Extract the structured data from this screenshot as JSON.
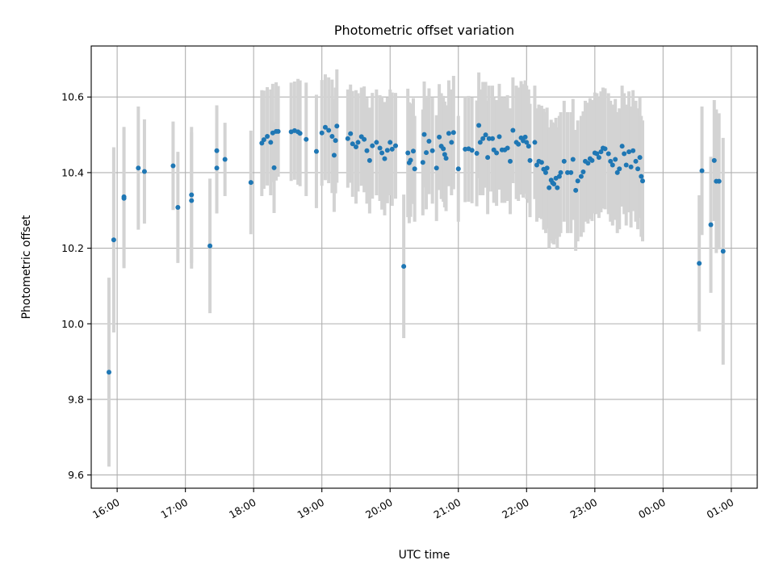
{
  "chart_data": {
    "type": "scatter",
    "title": "Photometric offset variation",
    "xlabel": "UTC time",
    "ylabel": "Photometric offset",
    "x_unit": "UTC time of day (hours, times after midnight given as 24+)",
    "xlim": [
      15.62,
      25.38
    ],
    "ylim": [
      9.565,
      10.735
    ],
    "x_ticks": [
      {
        "value": 16,
        "label": "16:00"
      },
      {
        "value": 17,
        "label": "17:00"
      },
      {
        "value": 18,
        "label": "18:00"
      },
      {
        "value": 19,
        "label": "19:00"
      },
      {
        "value": 20,
        "label": "20:00"
      },
      {
        "value": 21,
        "label": "21:00"
      },
      {
        "value": 22,
        "label": "22:00"
      },
      {
        "value": 23,
        "label": "23:00"
      },
      {
        "value": 24,
        "label": "00:00"
      },
      {
        "value": 25,
        "label": "01:00"
      }
    ],
    "y_ticks": [
      {
        "value": 9.6,
        "label": "9.6"
      },
      {
        "value": 9.8,
        "label": "9.8"
      },
      {
        "value": 10.0,
        "label": "10.0"
      },
      {
        "value": 10.2,
        "label": "10.2"
      },
      {
        "value": 10.4,
        "label": "10.4"
      },
      {
        "value": 10.6,
        "label": "10.6"
      }
    ],
    "grid": true,
    "colors": {
      "points": "#1f77b4",
      "error_bars": "#d3d3d3",
      "grid": "#b0b0b0"
    },
    "error_bars": true,
    "points": [
      [
        15.88,
        9.872,
        0.25
      ],
      [
        15.95,
        10.222,
        0.245
      ],
      [
        16.1,
        10.336,
        0.185
      ],
      [
        16.1,
        10.332,
        0.185
      ],
      [
        16.31,
        10.412,
        0.163
      ],
      [
        16.4,
        10.403,
        0.138
      ],
      [
        16.82,
        10.418,
        0.117
      ],
      [
        16.89,
        10.308,
        0.147
      ],
      [
        17.09,
        10.341,
        0.18
      ],
      [
        17.09,
        10.326,
        0.18
      ],
      [
        17.36,
        10.206,
        0.178
      ],
      [
        17.46,
        10.458,
        0.12
      ],
      [
        17.46,
        10.412,
        0.12
      ],
      [
        17.58,
        10.435,
        0.097
      ],
      [
        17.96,
        10.374,
        0.137
      ],
      [
        18.12,
        10.478,
        0.14
      ],
      [
        18.15,
        10.487,
        0.13
      ],
      [
        18.2,
        10.496,
        0.13
      ],
      [
        18.25,
        10.48,
        0.14
      ],
      [
        18.28,
        10.505,
        0.13
      ],
      [
        18.3,
        10.413,
        0.12
      ],
      [
        18.33,
        10.509,
        0.13
      ],
      [
        18.36,
        10.509,
        0.12
      ],
      [
        18.55,
        10.508,
        0.13
      ],
      [
        18.6,
        10.511,
        0.13
      ],
      [
        18.65,
        10.508,
        0.14
      ],
      [
        18.68,
        10.504,
        0.14
      ],
      [
        18.77,
        10.488,
        0.15
      ],
      [
        18.92,
        10.456,
        0.15
      ],
      [
        19.0,
        10.505,
        0.14
      ],
      [
        19.05,
        10.52,
        0.14
      ],
      [
        19.1,
        10.512,
        0.14
      ],
      [
        19.15,
        10.496,
        0.15
      ],
      [
        19.18,
        10.446,
        0.15
      ],
      [
        19.2,
        10.485,
        0.14
      ],
      [
        19.22,
        10.523,
        0.15
      ],
      [
        19.38,
        10.49,
        0.13
      ],
      [
        19.42,
        10.503,
        0.13
      ],
      [
        19.45,
        10.476,
        0.14
      ],
      [
        19.5,
        10.468,
        0.15
      ],
      [
        19.53,
        10.48,
        0.13
      ],
      [
        19.58,
        10.495,
        0.13
      ],
      [
        19.62,
        10.488,
        0.14
      ],
      [
        19.66,
        10.458,
        0.14
      ],
      [
        19.7,
        10.432,
        0.14
      ],
      [
        19.74,
        10.471,
        0.14
      ],
      [
        19.8,
        10.48,
        0.14
      ],
      [
        19.85,
        10.465,
        0.14
      ],
      [
        19.88,
        10.452,
        0.15
      ],
      [
        19.92,
        10.437,
        0.15
      ],
      [
        19.96,
        10.459,
        0.14
      ],
      [
        20.0,
        10.48,
        0.14
      ],
      [
        20.03,
        10.462,
        0.15
      ],
      [
        20.08,
        10.471,
        0.14
      ],
      [
        20.2,
        10.152,
        0.19
      ],
      [
        20.26,
        10.452,
        0.17
      ],
      [
        20.28,
        10.426,
        0.16
      ],
      [
        20.3,
        10.433,
        0.15
      ],
      [
        20.34,
        10.457,
        0.14
      ],
      [
        20.36,
        10.41,
        0.14
      ],
      [
        20.48,
        10.427,
        0.14
      ],
      [
        20.5,
        10.501,
        0.14
      ],
      [
        20.53,
        10.453,
        0.15
      ],
      [
        20.57,
        10.483,
        0.14
      ],
      [
        20.62,
        10.458,
        0.14
      ],
      [
        20.68,
        10.412,
        0.14
      ],
      [
        20.72,
        10.494,
        0.14
      ],
      [
        20.75,
        10.47,
        0.14
      ],
      [
        20.78,
        10.463,
        0.14
      ],
      [
        20.8,
        10.448,
        0.14
      ],
      [
        20.82,
        10.438,
        0.14
      ],
      [
        20.86,
        10.504,
        0.14
      ],
      [
        20.9,
        10.48,
        0.14
      ],
      [
        20.93,
        10.506,
        0.15
      ],
      [
        21.0,
        10.41,
        0.14
      ],
      [
        21.1,
        10.462,
        0.14
      ],
      [
        21.15,
        10.463,
        0.14
      ],
      [
        21.2,
        10.459,
        0.14
      ],
      [
        21.27,
        10.451,
        0.14
      ],
      [
        21.3,
        10.525,
        0.14
      ],
      [
        21.32,
        10.48,
        0.14
      ],
      [
        21.36,
        10.49,
        0.15
      ],
      [
        21.4,
        10.5,
        0.14
      ],
      [
        21.43,
        10.44,
        0.15
      ],
      [
        21.45,
        10.49,
        0.14
      ],
      [
        21.5,
        10.49,
        0.14
      ],
      [
        21.52,
        10.46,
        0.14
      ],
      [
        21.56,
        10.452,
        0.14
      ],
      [
        21.6,
        10.495,
        0.14
      ],
      [
        21.64,
        10.46,
        0.14
      ],
      [
        21.68,
        10.46,
        0.14
      ],
      [
        21.72,
        10.465,
        0.14
      ],
      [
        21.76,
        10.43,
        0.14
      ],
      [
        21.8,
        10.512,
        0.14
      ],
      [
        21.85,
        10.48,
        0.15
      ],
      [
        21.88,
        10.475,
        0.15
      ],
      [
        21.92,
        10.492,
        0.15
      ],
      [
        21.95,
        10.484,
        0.15
      ],
      [
        21.98,
        10.494,
        0.15
      ],
      [
        22.0,
        10.48,
        0.15
      ],
      [
        22.03,
        10.47,
        0.15
      ],
      [
        22.05,
        10.432,
        0.15
      ],
      [
        22.12,
        10.48,
        0.15
      ],
      [
        22.15,
        10.42,
        0.15
      ],
      [
        22.18,
        10.43,
        0.15
      ],
      [
        22.22,
        10.427,
        0.15
      ],
      [
        22.25,
        10.409,
        0.16
      ],
      [
        22.28,
        10.4,
        0.16
      ],
      [
        22.3,
        10.412,
        0.16
      ],
      [
        22.33,
        10.36,
        0.16
      ],
      [
        22.36,
        10.38,
        0.16
      ],
      [
        22.38,
        10.373,
        0.16
      ],
      [
        22.4,
        10.37,
        0.16
      ],
      [
        22.43,
        10.385,
        0.16
      ],
      [
        22.45,
        10.36,
        0.16
      ],
      [
        22.48,
        10.39,
        0.16
      ],
      [
        22.5,
        10.4,
        0.16
      ],
      [
        22.55,
        10.43,
        0.16
      ],
      [
        22.6,
        10.4,
        0.16
      ],
      [
        22.65,
        10.4,
        0.16
      ],
      [
        22.68,
        10.435,
        0.16
      ],
      [
        22.72,
        10.353,
        0.16
      ],
      [
        22.75,
        10.378,
        0.16
      ],
      [
        22.8,
        10.39,
        0.16
      ],
      [
        22.83,
        10.402,
        0.16
      ],
      [
        22.86,
        10.43,
        0.16
      ],
      [
        22.9,
        10.425,
        0.16
      ],
      [
        22.93,
        10.437,
        0.16
      ],
      [
        22.96,
        10.432,
        0.16
      ],
      [
        23.0,
        10.452,
        0.16
      ],
      [
        23.03,
        10.45,
        0.16
      ],
      [
        23.06,
        10.44,
        0.16
      ],
      [
        23.09,
        10.455,
        0.16
      ],
      [
        23.12,
        10.465,
        0.16
      ],
      [
        23.15,
        10.463,
        0.16
      ],
      [
        23.2,
        10.45,
        0.16
      ],
      [
        23.23,
        10.43,
        0.16
      ],
      [
        23.26,
        10.42,
        0.16
      ],
      [
        23.3,
        10.435,
        0.16
      ],
      [
        23.33,
        10.4,
        0.16
      ],
      [
        23.36,
        10.41,
        0.16
      ],
      [
        23.4,
        10.47,
        0.16
      ],
      [
        23.43,
        10.45,
        0.16
      ],
      [
        23.46,
        10.42,
        0.16
      ],
      [
        23.5,
        10.455,
        0.16
      ],
      [
        23.53,
        10.415,
        0.16
      ],
      [
        23.56,
        10.458,
        0.16
      ],
      [
        23.6,
        10.43,
        0.16
      ],
      [
        23.63,
        10.41,
        0.16
      ],
      [
        23.66,
        10.44,
        0.16
      ],
      [
        23.68,
        10.39,
        0.16
      ],
      [
        23.7,
        10.378,
        0.16
      ],
      [
        24.53,
        10.16,
        0.18
      ],
      [
        24.57,
        10.405,
        0.17
      ],
      [
        24.7,
        10.262,
        0.18
      ],
      [
        24.75,
        10.432,
        0.16
      ],
      [
        24.78,
        10.377,
        0.19
      ],
      [
        24.82,
        10.377,
        0.18
      ],
      [
        24.88,
        10.192,
        0.3
      ]
    ]
  }
}
